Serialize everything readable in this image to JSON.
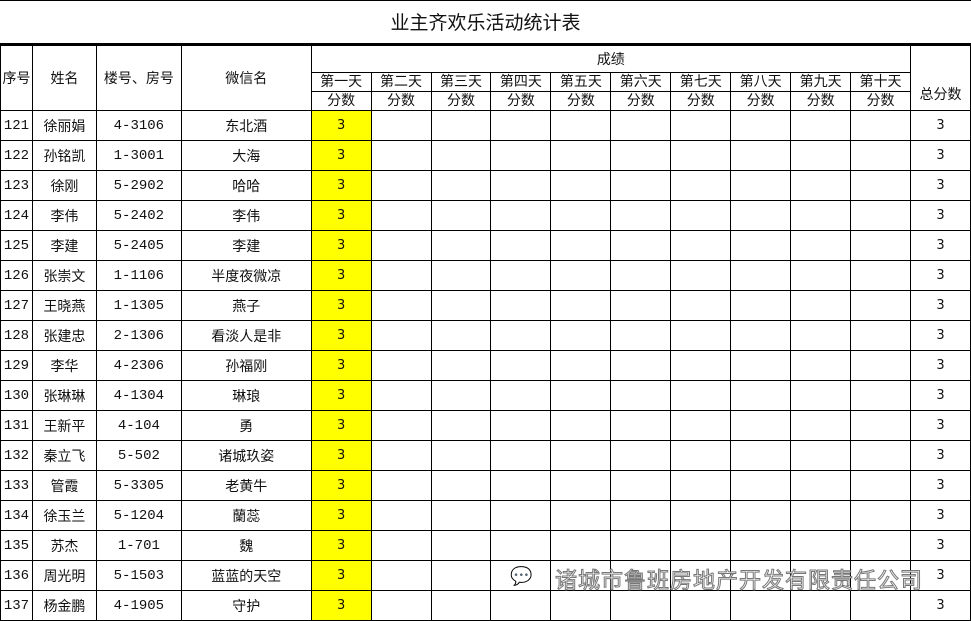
{
  "title": "业主齐欢乐活动统计表",
  "headers": {
    "seq": "序号",
    "name": "姓名",
    "room": "楼号、房号",
    "wechat": "微信名",
    "score_group": "成绩",
    "days": [
      "第一天",
      "第二天",
      "第三天",
      "第四天",
      "第五天",
      "第六天",
      "第七天",
      "第八天",
      "第九天",
      "第十天"
    ],
    "score": "分数",
    "total": "总分数"
  },
  "highlight_color": "#ffff00",
  "rows": [
    {
      "seq": "121",
      "name": "徐丽娟",
      "room": "4-3106",
      "wechat": "东北酒",
      "day1": "3",
      "total": "3"
    },
    {
      "seq": "122",
      "name": "孙铭凯",
      "room": "1-3001",
      "wechat": "大海",
      "day1": "3",
      "total": "3"
    },
    {
      "seq": "123",
      "name": "徐刚",
      "room": "5-2902",
      "wechat": "哈哈",
      "day1": "3",
      "total": "3"
    },
    {
      "seq": "124",
      "name": "李伟",
      "room": "5-2402",
      "wechat": "李伟",
      "day1": "3",
      "total": "3"
    },
    {
      "seq": "125",
      "name": "李建",
      "room": "5-2405",
      "wechat": "李建",
      "day1": "3",
      "total": "3"
    },
    {
      "seq": "126",
      "name": "张崇文",
      "room": "1-1106",
      "wechat": "半度夜微凉",
      "day1": "3",
      "total": "3"
    },
    {
      "seq": "127",
      "name": "王晓燕",
      "room": "1-1305",
      "wechat": "燕子",
      "day1": "3",
      "total": "3"
    },
    {
      "seq": "128",
      "name": "张建忠",
      "room": "2-1306",
      "wechat": "看淡人是非",
      "day1": "3",
      "total": "3"
    },
    {
      "seq": "129",
      "name": "李华",
      "room": "4-2306",
      "wechat": "孙福刚",
      "day1": "3",
      "total": "3"
    },
    {
      "seq": "130",
      "name": "张琳琳",
      "room": "4-1304",
      "wechat": "琳琅",
      "day1": "3",
      "total": "3"
    },
    {
      "seq": "131",
      "name": "王新平",
      "room": "4-104",
      "wechat": "勇",
      "day1": "3",
      "total": "3"
    },
    {
      "seq": "132",
      "name": "秦立飞",
      "room": "5-502",
      "wechat": "诸城玖姿",
      "day1": "3",
      "total": "3"
    },
    {
      "seq": "133",
      "name": "管霞",
      "room": "5-3305",
      "wechat": "老黄牛",
      "day1": "3",
      "total": "3"
    },
    {
      "seq": "134",
      "name": "徐玉兰",
      "room": "5-1204",
      "wechat": "蘭蕊",
      "day1": "3",
      "total": "3"
    },
    {
      "seq": "135",
      "name": "苏杰",
      "room": "1-701",
      "wechat": "魏",
      "day1": "3",
      "total": "3"
    },
    {
      "seq": "136",
      "name": "周光明",
      "room": "5-1503",
      "wechat": "蓝蓝的天空",
      "day1": "3",
      "total": "3"
    },
    {
      "seq": "137",
      "name": "杨金鹏",
      "room": "4-1905",
      "wechat": "守护",
      "day1": "3",
      "total": "3"
    }
  ],
  "watermark": "诸城市鲁班房地产开发有限责任公司"
}
